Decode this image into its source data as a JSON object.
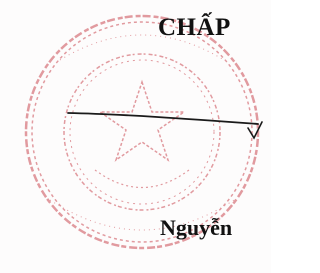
{
  "document": {
    "heading": "CHẤP",
    "name": "Nguyễn"
  }
}
